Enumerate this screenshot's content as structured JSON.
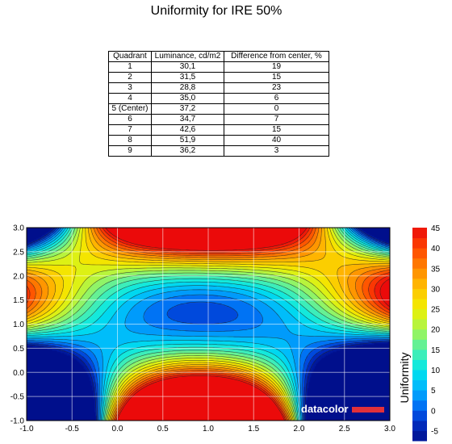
{
  "title": "Uniformity for IRE 50%",
  "table": {
    "headers": [
      "Quadrant",
      "Luminance, cd/m2",
      "Difference from center, %"
    ],
    "rows": [
      [
        "1",
        "30,1",
        "19"
      ],
      [
        "2",
        "31,5",
        "15"
      ],
      [
        "3",
        "28,8",
        "23"
      ],
      [
        "4",
        "35,0",
        "6"
      ],
      [
        "5 (Center)",
        "37,2",
        "0"
      ],
      [
        "6",
        "34,7",
        "7"
      ],
      [
        "7",
        "42,6",
        "15"
      ],
      [
        "8",
        "51,9",
        "40"
      ],
      [
        "9",
        "36,2",
        "3"
      ]
    ]
  },
  "chart_data": {
    "type": "heatmap",
    "subtype": "filled-contour",
    "title": "",
    "xlim": [
      -1.0,
      3.0
    ],
    "ylim": [
      -1.0,
      3.0
    ],
    "x_ticks": [
      "-1.0",
      "-0.5",
      "0.0",
      "0.5",
      "1.0",
      "1.5",
      "2.0",
      "2.5",
      "3.0"
    ],
    "y_ticks": [
      "-1.0",
      "-0.5",
      "0.0",
      "0.5",
      "1.0",
      "1.5",
      "2.0",
      "2.5",
      "3.0"
    ],
    "grid": true,
    "colorbar": {
      "label": "Uniformity",
      "ticks": [
        "45",
        "40",
        "35",
        "30",
        "25",
        "20",
        "15",
        "10",
        "5",
        "0",
        "-5"
      ],
      "range": [
        -7.5,
        45
      ]
    },
    "quadrant_points": [
      {
        "quadrant": 1,
        "x": 0,
        "y": 2,
        "value": 19
      },
      {
        "quadrant": 2,
        "x": 1,
        "y": 2,
        "value": 15
      },
      {
        "quadrant": 3,
        "x": 2,
        "y": 2,
        "value": 23
      },
      {
        "quadrant": 4,
        "x": 0,
        "y": 1,
        "value": 6
      },
      {
        "quadrant": 5,
        "x": 1,
        "y": 1,
        "value": 0
      },
      {
        "quadrant": 6,
        "x": 2,
        "y": 1,
        "value": 7
      },
      {
        "quadrant": 7,
        "x": 0,
        "y": 0,
        "value": 15
      },
      {
        "quadrant": 8,
        "x": 1,
        "y": 0,
        "value": 40
      },
      {
        "quadrant": 9,
        "x": 2,
        "y": 0,
        "value": 3
      }
    ],
    "watermark": "datacolor"
  }
}
